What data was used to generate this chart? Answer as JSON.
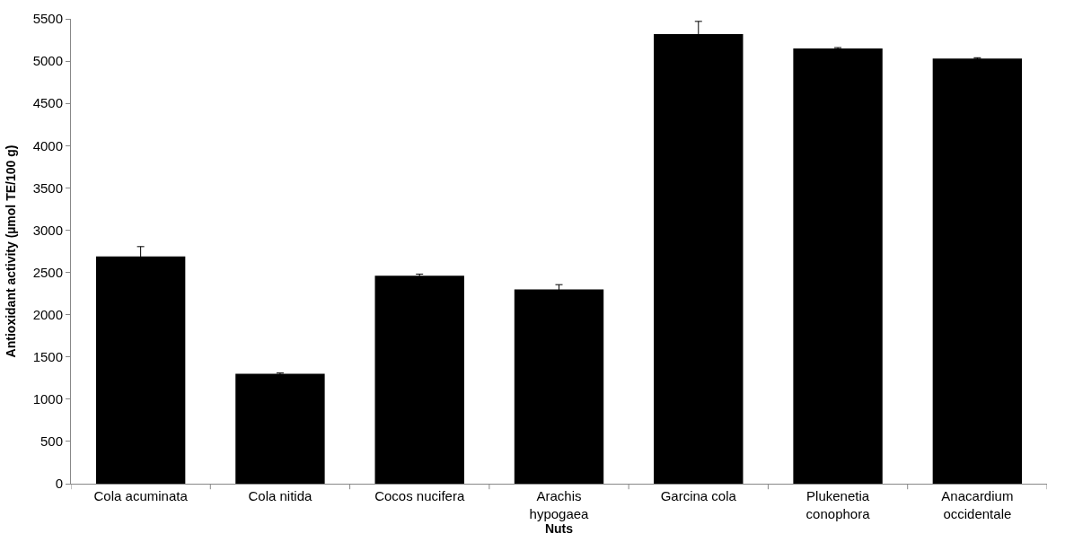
{
  "chart_data": {
    "type": "bar",
    "xlabel": "Nuts",
    "ylabel": "Antioxidant activity (µmol TE/100 g)",
    "categories": [
      "Cola acuminata",
      "Cola nitida",
      "Cocos nucifera",
      "Arachis hypogaea",
      "Garcina cola",
      "Plukenetia conophora",
      "Anacardium occidentale"
    ],
    "values": [
      2690,
      1300,
      2460,
      2300,
      5320,
      5150,
      5030
    ],
    "errors": [
      115,
      10,
      20,
      55,
      150,
      10,
      10
    ],
    "color": "#000000",
    "ylim": [
      0,
      5500
    ],
    "yticks": [
      0,
      500,
      1000,
      1500,
      2000,
      2500,
      3000,
      3500,
      4000,
      4500,
      5000,
      5500
    ]
  }
}
